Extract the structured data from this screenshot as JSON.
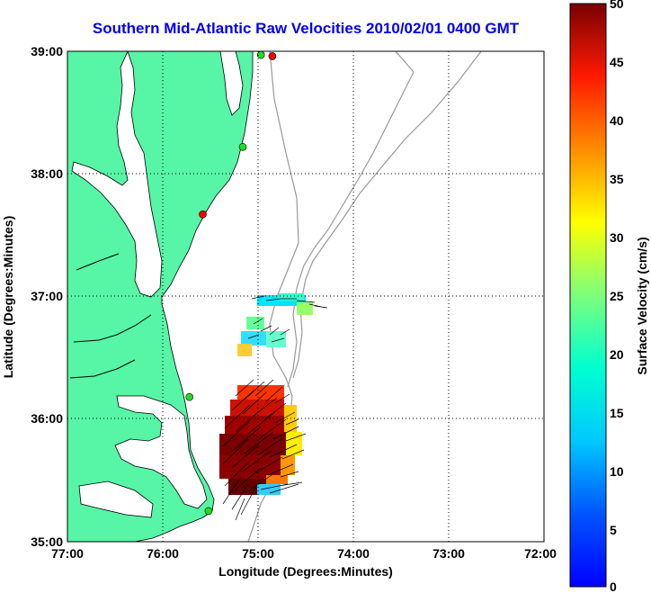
{
  "title": "Southern Mid-Atlantic Raw Velocities 2010/02/01 0400 GMT",
  "x_axis": {
    "label": "Longitude (Degrees:Minutes)",
    "ticks": [
      "77:00",
      "76:00",
      "75:00",
      "74:00",
      "73:00",
      "72:00"
    ]
  },
  "y_axis": {
    "label": "Latitude (Degrees:Minutes)",
    "ticks": [
      "39:00",
      "38:00",
      "37:00",
      "36:00",
      "35:00"
    ]
  },
  "colorbar": {
    "label": "Surface Velocity (cm/s)",
    "ticks": [
      "50",
      "45",
      "40",
      "35",
      "30",
      "25",
      "20",
      "15",
      "10",
      "5",
      "0"
    ],
    "min": 0,
    "max": 50,
    "colormap": "jet"
  },
  "map_extent": {
    "lon_min": -77,
    "lon_max": -72,
    "lat_min": 35,
    "lat_max": 39
  },
  "colors": {
    "land": "#57f5a6",
    "bathymetry": "#999999",
    "title": "#0000ee",
    "arrows": "#000000"
  },
  "grid": true,
  "stations": [
    {
      "lon": -74.85,
      "lat": 38.96,
      "color": "#ff0000"
    },
    {
      "lon": -74.97,
      "lat": 38.97,
      "color": "#22dd22"
    },
    {
      "lon": -75.16,
      "lat": 38.22,
      "color": "#22dd22"
    },
    {
      "lon": -75.58,
      "lat": 37.67,
      "color": "#ff0000"
    },
    {
      "lon": -75.72,
      "lat": 36.18,
      "color": "#22dd22"
    },
    {
      "lon": -75.52,
      "lat": 35.25,
      "color": "#22dd22"
    }
  ]
}
